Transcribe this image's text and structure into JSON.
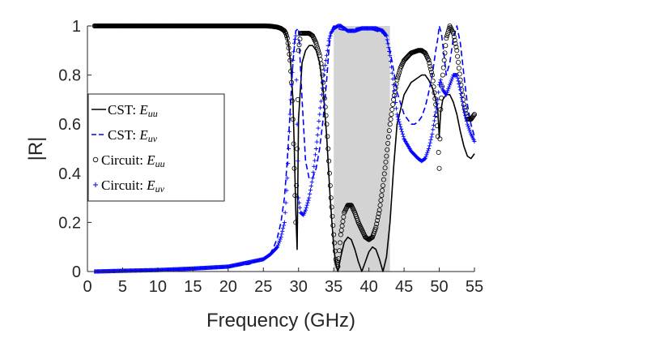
{
  "chart_data": {
    "type": "line",
    "title": "",
    "xlabel": "Frequency (GHz)",
    "ylabel": "|R|",
    "xlim": [
      0,
      55
    ],
    "ylim": [
      0,
      1
    ],
    "xticks": [
      "0",
      "5",
      "10",
      "15",
      "20",
      "25",
      "30",
      "35",
      "40",
      "45",
      "50",
      "55"
    ],
    "yticks": [
      "0",
      "0.2",
      "0.4",
      "0.6",
      "0.8",
      "1"
    ],
    "xtick_values": [
      0,
      5,
      10,
      15,
      20,
      25,
      30,
      35,
      40,
      45,
      50,
      55
    ],
    "ytick_values": [
      0,
      0.2,
      0.4,
      0.6,
      0.8,
      1
    ],
    "grid": false,
    "legend_position": "left",
    "shaded_band": {
      "x_start": 35,
      "x_end": 43,
      "color": "#d3d3d3"
    },
    "series": [
      {
        "name": "CST: E_uu",
        "legend_label": "CST: ",
        "legend_math": "E",
        "legend_sub": "uu",
        "style": "solid",
        "color": "#000000",
        "x": [
          1,
          5,
          10,
          15,
          20,
          25,
          26,
          27,
          27.5,
          28,
          28.3,
          28.6,
          28.9,
          29.2,
          29.4,
          29.6,
          29.8,
          30,
          30.5,
          31,
          31.5,
          32,
          32.5,
          33,
          33.5,
          34,
          34.5,
          35,
          35.3,
          35.6,
          36,
          36.5,
          37,
          37.5,
          38,
          38.5,
          39,
          39.5,
          40,
          40.5,
          41,
          41.5,
          42,
          42.5,
          43,
          43.5,
          44,
          45,
          46,
          47,
          47.5,
          48,
          48.5,
          49,
          49.5,
          49.8,
          50,
          50.2,
          50.5,
          51,
          51.5,
          52,
          52.5,
          53,
          53.5,
          54,
          54.5,
          55
        ],
        "y": [
          1,
          1,
          1,
          1,
          1,
          0.999,
          0.998,
          0.996,
          0.992,
          0.98,
          0.96,
          0.92,
          0.84,
          0.7,
          0.5,
          0.25,
          0.09,
          0.62,
          0.85,
          0.9,
          0.92,
          0.92,
          0.9,
          0.85,
          0.74,
          0.55,
          0.3,
          0.1,
          0.03,
          0.0,
          0.06,
          0.12,
          0.14,
          0.13,
          0.09,
          0.04,
          0.0,
          0.04,
          0.08,
          0.1,
          0.09,
          0.05,
          0.0,
          0.06,
          0.2,
          0.42,
          0.6,
          0.72,
          0.77,
          0.79,
          0.8,
          0.8,
          0.78,
          0.75,
          0.7,
          0.65,
          0.55,
          0.65,
          0.7,
          0.72,
          0.72,
          0.69,
          0.64,
          0.57,
          0.51,
          0.47,
          0.46,
          0.48
        ]
      },
      {
        "name": "CST: E_uv",
        "legend_label": "CST: ",
        "legend_math": "E",
        "legend_sub": "uv",
        "style": "dashed",
        "color": "#0000ff",
        "x": [
          1,
          5,
          10,
          15,
          20,
          23,
          25,
          26,
          26.5,
          27,
          27.5,
          28,
          28.4,
          28.8,
          29.2,
          29.6,
          30,
          30.5,
          31,
          31.5,
          32,
          32.5,
          33,
          33.5,
          34,
          34.3,
          34.6,
          35,
          35.5,
          36,
          37,
          38,
          39,
          40,
          41,
          42,
          42.5,
          43,
          43.5,
          44,
          45,
          46,
          46.5,
          47,
          47.5,
          48,
          48.5,
          49,
          49.5,
          49.8,
          50,
          50.3,
          50.6,
          51,
          51.5,
          52,
          52.5,
          53,
          53.5,
          54,
          54.5,
          55
        ],
        "y": [
          0,
          0.003,
          0.006,
          0.01,
          0.018,
          0.03,
          0.05,
          0.075,
          0.1,
          0.14,
          0.2,
          0.3,
          0.45,
          0.65,
          0.85,
          0.98,
          0.99,
          0.7,
          0.45,
          0.38,
          0.38,
          0.42,
          0.5,
          0.62,
          0.78,
          0.9,
          0.98,
          1,
          0.99,
          0.985,
          0.98,
          0.99,
          0.995,
          0.99,
          0.98,
          0.97,
          0.95,
          0.9,
          0.82,
          0.73,
          0.64,
          0.6,
          0.6,
          0.61,
          0.63,
          0.67,
          0.73,
          0.8,
          0.9,
          0.95,
          1,
          0.97,
          0.9,
          0.8,
          0.85,
          0.95,
          1,
          0.93,
          0.8,
          0.68,
          0.6,
          0.55
        ]
      },
      {
        "name": "Circuit: E_uu",
        "legend_label": "Circuit: ",
        "legend_math": "E",
        "legend_sub": "uu",
        "marker": "circle",
        "color": "#000000",
        "x": [
          1,
          5,
          10,
          15,
          20,
          25,
          26,
          27,
          27.5,
          28,
          28.2,
          28.4,
          28.6,
          28.8,
          29,
          29.2,
          29.4,
          29.6,
          29.8,
          30,
          30.3,
          30.7,
          31,
          31.5,
          32,
          32.5,
          33,
          33.3,
          33.6,
          34,
          34.3,
          34.6,
          35,
          35.3,
          35.6,
          36,
          36.5,
          37,
          37.5,
          38,
          38.5,
          39,
          39.5,
          40,
          40.5,
          41,
          41.5,
          42,
          42.5,
          43,
          43.5,
          44,
          44.5,
          45,
          46,
          47,
          47.5,
          48,
          48.5,
          49,
          49.5,
          49.8,
          50,
          50.2,
          50.5,
          51,
          51.5,
          52,
          52.5,
          53,
          53.5,
          54,
          54.5,
          55
        ],
        "y": [
          1,
          1,
          1,
          1,
          1,
          1,
          0.999,
          0.995,
          0.99,
          0.98,
          0.97,
          0.95,
          0.91,
          0.86,
          0.77,
          0.62,
          0.42,
          0.2,
          0.5,
          0.9,
          0.97,
          0.97,
          0.97,
          0.97,
          0.96,
          0.93,
          0.88,
          0.83,
          0.74,
          0.6,
          0.45,
          0.3,
          0.15,
          0.05,
          0.02,
          0.15,
          0.24,
          0.27,
          0.27,
          0.24,
          0.2,
          0.17,
          0.14,
          0.13,
          0.14,
          0.18,
          0.25,
          0.35,
          0.47,
          0.6,
          0.7,
          0.78,
          0.83,
          0.86,
          0.89,
          0.9,
          0.9,
          0.89,
          0.86,
          0.8,
          0.68,
          0.55,
          0.42,
          0.66,
          0.8,
          0.95,
          1,
          0.97,
          0.9,
          0.78,
          0.68,
          0.62,
          0.62,
          0.64
        ]
      },
      {
        "name": "Circuit: E_uv",
        "legend_label": "Circuit: ",
        "legend_math": "E",
        "legend_sub": "uv",
        "marker": "plus",
        "color": "#0000ff",
        "x": [
          1,
          5,
          10,
          15,
          20,
          25,
          26,
          27,
          27.5,
          28,
          28.2,
          28.4,
          28.6,
          28.8,
          29,
          29.2,
          29.4,
          29.6,
          29.8,
          30,
          30.3,
          30.7,
          31,
          31.5,
          32,
          32.5,
          33,
          33.3,
          33.6,
          34,
          34.3,
          34.6,
          35,
          35.3,
          35.6,
          36,
          36.5,
          37,
          38,
          39,
          40,
          41,
          42,
          42.5,
          43,
          43.5,
          44,
          45,
          46,
          47,
          47.5,
          48,
          48.5,
          49,
          49.5,
          49.8,
          50,
          50.2,
          50.5,
          51,
          51.5,
          52,
          52.5,
          53,
          53.5,
          54,
          54.5,
          55
        ],
        "y": [
          0,
          0.003,
          0.006,
          0.012,
          0.02,
          0.05,
          0.07,
          0.1,
          0.14,
          0.2,
          0.28,
          0.38,
          0.5,
          0.64,
          0.76,
          0.86,
          0.93,
          0.96,
          0.6,
          0.3,
          0.24,
          0.23,
          0.25,
          0.3,
          0.38,
          0.5,
          0.64,
          0.72,
          0.8,
          0.88,
          0.94,
          0.97,
          0.99,
          0.995,
          1,
          1,
          0.99,
          0.98,
          0.98,
          0.99,
          0.99,
          0.99,
          0.98,
          0.96,
          0.88,
          0.76,
          0.64,
          0.54,
          0.49,
          0.46,
          0.45,
          0.46,
          0.5,
          0.56,
          0.65,
          0.7,
          0.76,
          0.78,
          0.74,
          0.72,
          0.76,
          0.8,
          0.8,
          0.74,
          0.66,
          0.6,
          0.56,
          0.53
        ]
      }
    ]
  }
}
